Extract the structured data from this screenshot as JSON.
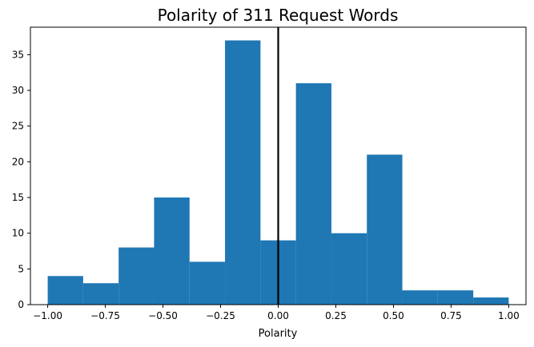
{
  "chart_data": {
    "type": "bar",
    "title": "Polarity of 311 Request Words",
    "xlabel": "Polarity",
    "ylabel": "",
    "xlim": [
      -1.075,
      1.075
    ],
    "ylim": [
      0,
      38.85
    ],
    "xticks": [
      -1.0,
      -0.75,
      -0.5,
      -0.25,
      0.0,
      0.25,
      0.5,
      0.75,
      1.0
    ],
    "xtick_labels": [
      "−1.00",
      "−0.75",
      "−0.50",
      "−0.25",
      "0.00",
      "0.25",
      "0.50",
      "0.75",
      "1.00"
    ],
    "yticks": [
      0,
      5,
      10,
      15,
      20,
      25,
      30,
      35
    ],
    "ytick_labels": [
      "0",
      "5",
      "10",
      "15",
      "20",
      "25",
      "30",
      "35"
    ],
    "bin_edges": [
      -1.0,
      -0.8462,
      -0.6923,
      -0.5385,
      -0.3846,
      -0.2308,
      -0.0769,
      0.0769,
      0.2308,
      0.3846,
      0.5385,
      0.6923,
      0.8462,
      1.0
    ],
    "values": [
      4,
      3,
      8,
      15,
      6,
      37,
      9,
      31,
      10,
      21,
      2,
      2,
      1
    ],
    "bar_color": "#1f77b4",
    "vline": {
      "x": 0.0,
      "color": "#000000"
    },
    "grid": false,
    "legend": "none"
  }
}
